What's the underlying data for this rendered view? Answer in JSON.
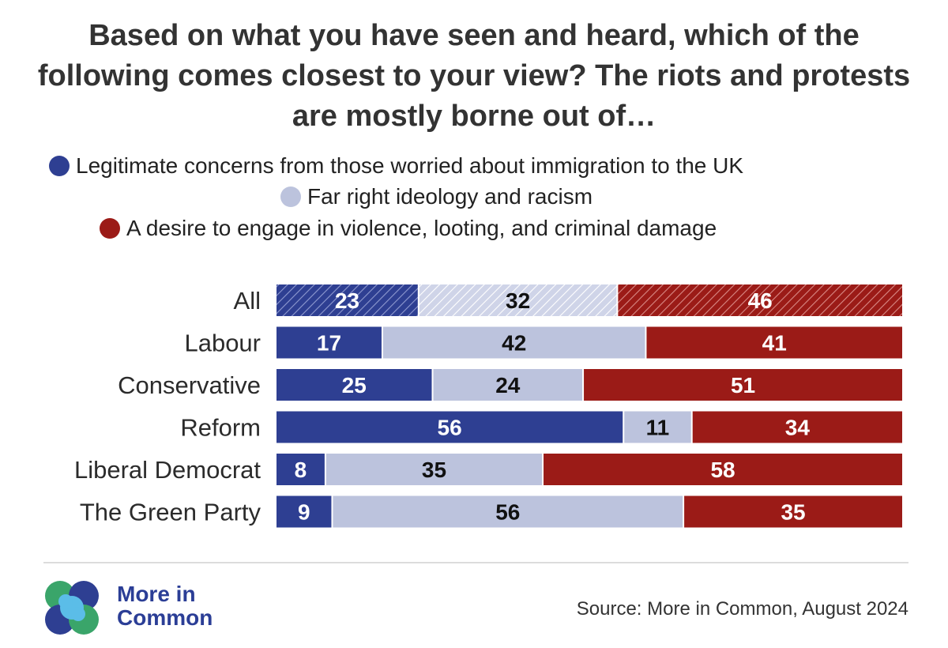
{
  "chart_data": {
    "type": "bar",
    "orientation": "horizontal",
    "stacked": true,
    "title": "Based on what you have seen and heard, which of the following comes closest to your view? The riots and protests are mostly borne out of…",
    "categories": [
      "All",
      "Labour",
      "Conservative",
      "Reform",
      "Liberal Democrat",
      "The Green Party"
    ],
    "series": [
      {
        "name": "Legitimate concerns from those worried about immigration to the UK",
        "color": "#2e3f92",
        "label_color": "#ffffff",
        "values": [
          23,
          17,
          25,
          56,
          8,
          9
        ]
      },
      {
        "name": "Far right ideology and racism",
        "color": "#bcc3dd",
        "label_color": "#111111",
        "values": [
          32,
          42,
          24,
          11,
          35,
          56
        ]
      },
      {
        "name": "A desire to engage in violence, looting, and criminal damage",
        "color": "#9b1b17",
        "label_color": "#ffffff",
        "values": [
          46,
          41,
          51,
          34,
          58,
          35
        ]
      }
    ],
    "hatched_categories": [
      "All"
    ],
    "legend_position": "top-center",
    "grid": false
  },
  "footer": {
    "logo_line1": "More in",
    "logo_line2": "Common",
    "source": "Source: More in Common, August 2024"
  }
}
